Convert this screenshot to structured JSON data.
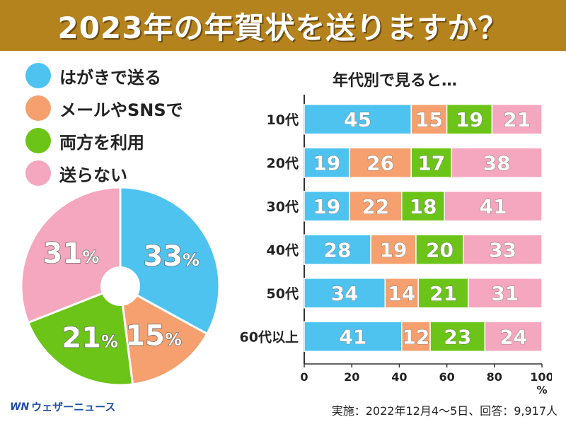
{
  "header": {
    "title": "2023年の年賀状を送りますか？"
  },
  "colors": {
    "card": "#4ec3f0",
    "sns": "#f5a06e",
    "both": "#6cc418",
    "none": "#f4a7bf",
    "header_bg": "#b5831e"
  },
  "legend": [
    {
      "label": "はがきで送る",
      "color": "#4ec3f0"
    },
    {
      "label": "メールやSNSで",
      "color": "#f5a06e"
    },
    {
      "label": "両方を利用",
      "color": "#6cc418"
    },
    {
      "label": "送らない",
      "color": "#f4a7bf"
    }
  ],
  "chart_data": [
    {
      "type": "pie",
      "labels": [
        "はがきで送る",
        "メールやSNSで",
        "両方を利用",
        "送らない"
      ],
      "values": [
        33,
        15,
        21,
        31
      ],
      "unit": "%",
      "donut_hole": true
    },
    {
      "type": "bar",
      "orientation": "horizontal",
      "stacked": true,
      "title": "年代別で見ると…",
      "categories": [
        "10代",
        "20代",
        "30代",
        "40代",
        "50代",
        "60代以上"
      ],
      "series": [
        {
          "name": "はがきで送る",
          "values": [
            45,
            19,
            19,
            28,
            34,
            41
          ]
        },
        {
          "name": "メールやSNSで",
          "values": [
            15,
            26,
            22,
            19,
            14,
            12
          ]
        },
        {
          "name": "両方を利用",
          "values": [
            19,
            17,
            18,
            20,
            21,
            23
          ]
        },
        {
          "name": "送らない",
          "values": [
            21,
            38,
            41,
            33,
            31,
            24
          ]
        }
      ],
      "xlim": [
        0,
        100
      ],
      "xticks": [
        0,
        20,
        40,
        60,
        80,
        100
      ],
      "xunit": "%"
    }
  ],
  "brand": {
    "logo": "WN",
    "name": "ウェザーニュース"
  },
  "footer": {
    "source": "実施：2022年12月4～5日、回答：9,917人"
  }
}
